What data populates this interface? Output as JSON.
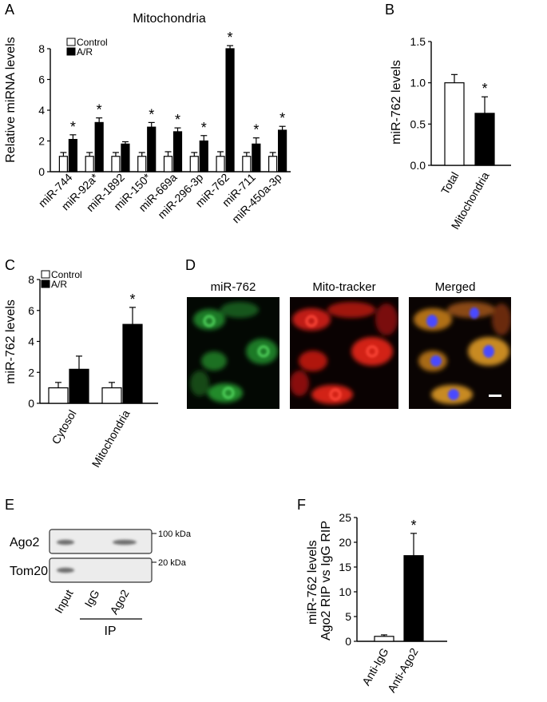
{
  "figure": {
    "panels": {
      "A": "A",
      "B": "B",
      "C": "C",
      "D": "D",
      "E": "E",
      "F": "F"
    },
    "legend": {
      "control": "Control",
      "ar": "A/R"
    },
    "significance_marker": "*"
  },
  "chart_data": [
    {
      "panel": "A",
      "type": "bar",
      "title": "Mitochondria",
      "ylabel": "Relative miRNA levels",
      "ylim": [
        0,
        8
      ],
      "yticks": [
        "0",
        "2",
        "4",
        "6",
        "8"
      ],
      "categories": [
        "miR-744",
        "miR-92a*",
        "miR-1892",
        "miR-150*",
        "miR-669a",
        "miR-296-3p",
        "miR-762",
        "miR-711",
        "miR-450a-3p"
      ],
      "series": [
        {
          "name": "Control",
          "values": [
            1.0,
            1.0,
            1.0,
            1.0,
            1.0,
            1.0,
            1.0,
            1.0,
            1.0
          ],
          "errors": [
            0.25,
            0.25,
            0.25,
            0.25,
            0.3,
            0.25,
            0.3,
            0.25,
            0.25
          ]
        },
        {
          "name": "A/R",
          "values": [
            2.1,
            3.2,
            1.8,
            2.9,
            2.6,
            2.0,
            8.0,
            1.8,
            2.7
          ],
          "errors": [
            0.3,
            0.3,
            0.15,
            0.3,
            0.25,
            0.35,
            0.2,
            0.4,
            0.25
          ]
        }
      ],
      "significant": [
        true,
        true,
        false,
        true,
        true,
        true,
        true,
        true,
        true
      ]
    },
    {
      "panel": "B",
      "type": "bar",
      "ylabel": "miR-762 levels",
      "ylim": [
        0,
        1.5
      ],
      "yticks": [
        "0.0",
        "0.5",
        "1.0",
        "1.5"
      ],
      "categories": [
        "Total",
        "Mitochondria"
      ],
      "values": [
        1.0,
        0.63
      ],
      "errors": [
        0.1,
        0.2
      ],
      "fills": [
        "#ffffff",
        "#000000"
      ],
      "significant": [
        false,
        true
      ]
    },
    {
      "panel": "C",
      "type": "bar",
      "ylabel": "miR-762 levels",
      "ylim": [
        0,
        8
      ],
      "yticks": [
        "0",
        "2",
        "4",
        "6",
        "8"
      ],
      "categories": [
        "Cytosol",
        "Mitochondria"
      ],
      "series": [
        {
          "name": "Control",
          "values": [
            1.0,
            1.0
          ],
          "errors": [
            0.35,
            0.35
          ]
        },
        {
          "name": "A/R",
          "values": [
            2.2,
            5.1
          ],
          "errors": [
            0.85,
            1.1
          ]
        }
      ],
      "significant": [
        false,
        true
      ]
    },
    {
      "panel": "F",
      "type": "bar",
      "ylabel_line1": "miR-762 levels",
      "ylabel_line2": "Ago2 RIP vs IgG RIP",
      "ylim": [
        0,
        25
      ],
      "yticks": [
        "0",
        "5",
        "10",
        "15",
        "20",
        "25"
      ],
      "categories": [
        "Anti-IgG",
        "Anti-Ago2"
      ],
      "values": [
        1.0,
        17.3
      ],
      "errors": [
        0.3,
        4.5
      ],
      "fills": [
        "#ffffff",
        "#000000"
      ],
      "significant": [
        false,
        true
      ]
    }
  ],
  "microscopy": {
    "titles": [
      "miR-762",
      "Mito-tracker",
      "Merged"
    ],
    "colors": {
      "green": "#2fae3a",
      "red": "#e0281e",
      "merged": "#e0a020",
      "nuclei": "#3a3aff"
    }
  },
  "blot": {
    "rows": [
      "Ago2",
      "Tom20"
    ],
    "markers": [
      "100 kDa",
      "20  kDa"
    ],
    "lanes": [
      "Input",
      "IgG",
      "Ago2"
    ],
    "ip_label": "IP"
  }
}
